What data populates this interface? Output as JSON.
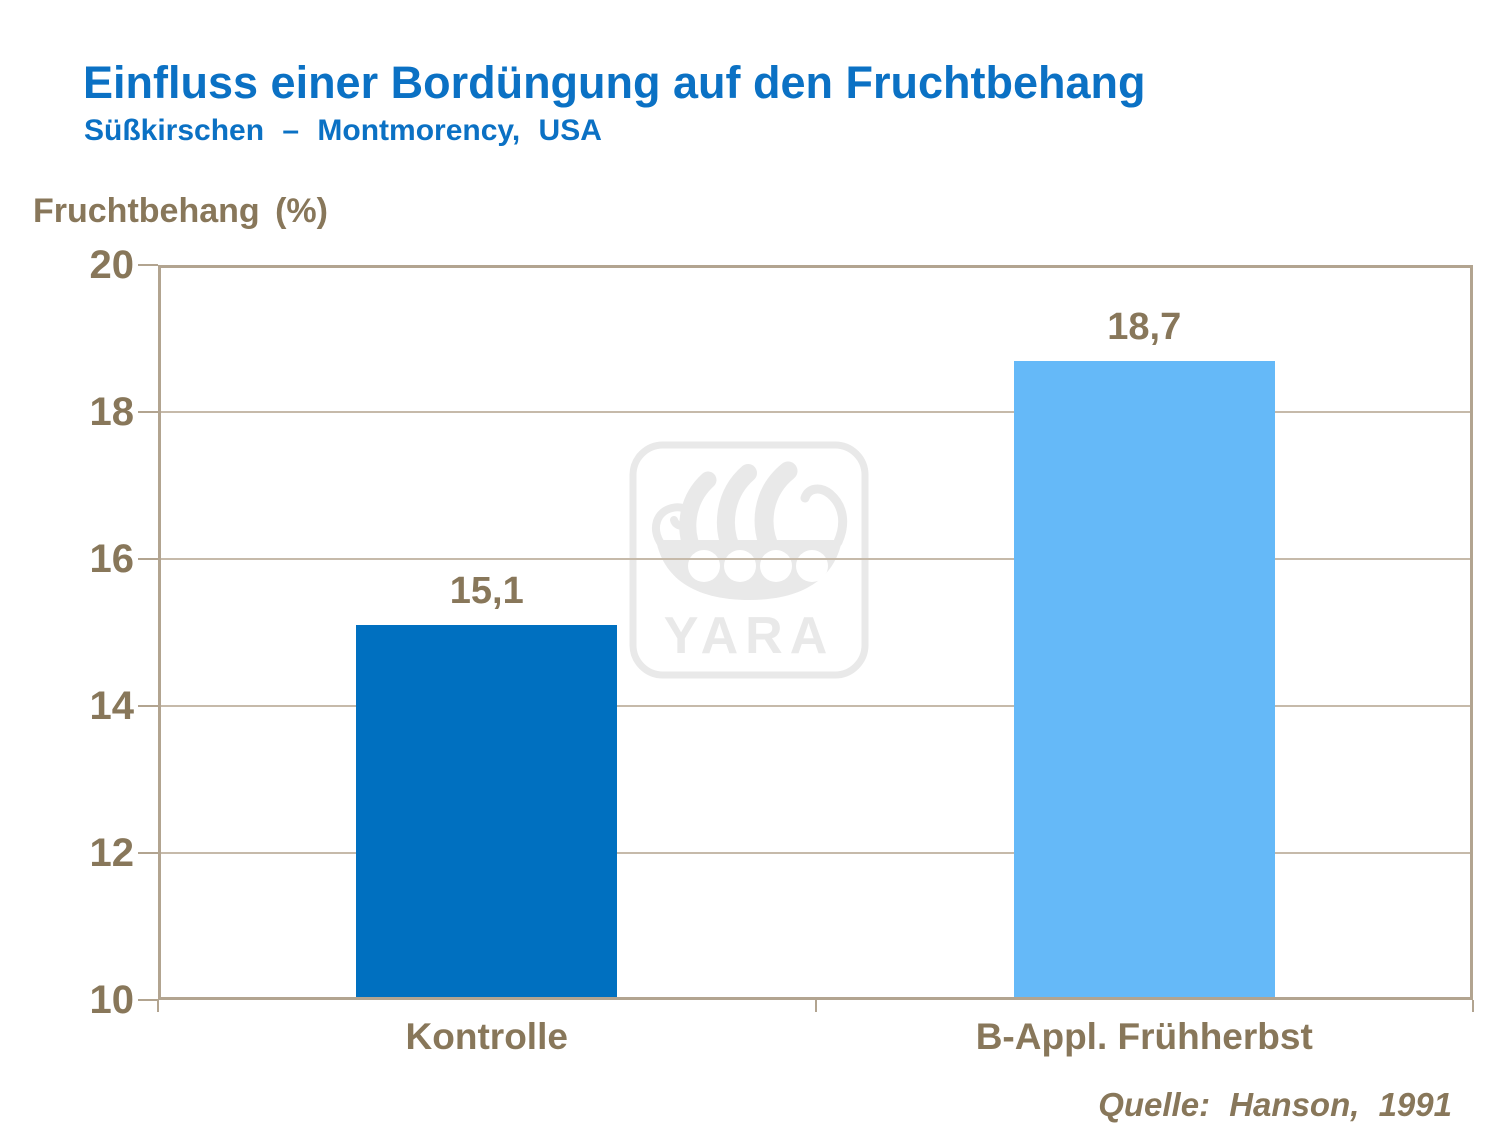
{
  "watermark": {
    "label": "YARA"
  },
  "colors": {
    "title-blue": "#0B71C4",
    "text-brown": "#88775A",
    "axis-border": "#B2A490",
    "gridline": "#C6BAAA",
    "watermark-gray": "#E9E9E9",
    "bar-dark-blue": "#0070C0",
    "bar-light-blue": "#65B9F8"
  },
  "chart_data": {
    "type": "bar",
    "title": "Einfluss einer Bordüngung auf den Fruchtbehang",
    "subtitle": "Süßkirschen – Montmorency, USA",
    "ylabel": "Fruchtbehang (%)",
    "categories": [
      "Kontrolle",
      "B-Appl. Frühherbst"
    ],
    "values": [
      15.1,
      18.7
    ],
    "value_labels": [
      "15,1",
      "18,7"
    ],
    "bar_colors": [
      "#0070C0",
      "#65B9F8"
    ],
    "ylim": [
      10,
      20
    ],
    "yticks": [
      10,
      12,
      14,
      16,
      18,
      20
    ],
    "grid": true,
    "legend": false,
    "source": "Quelle: Hanson, 1991"
  }
}
